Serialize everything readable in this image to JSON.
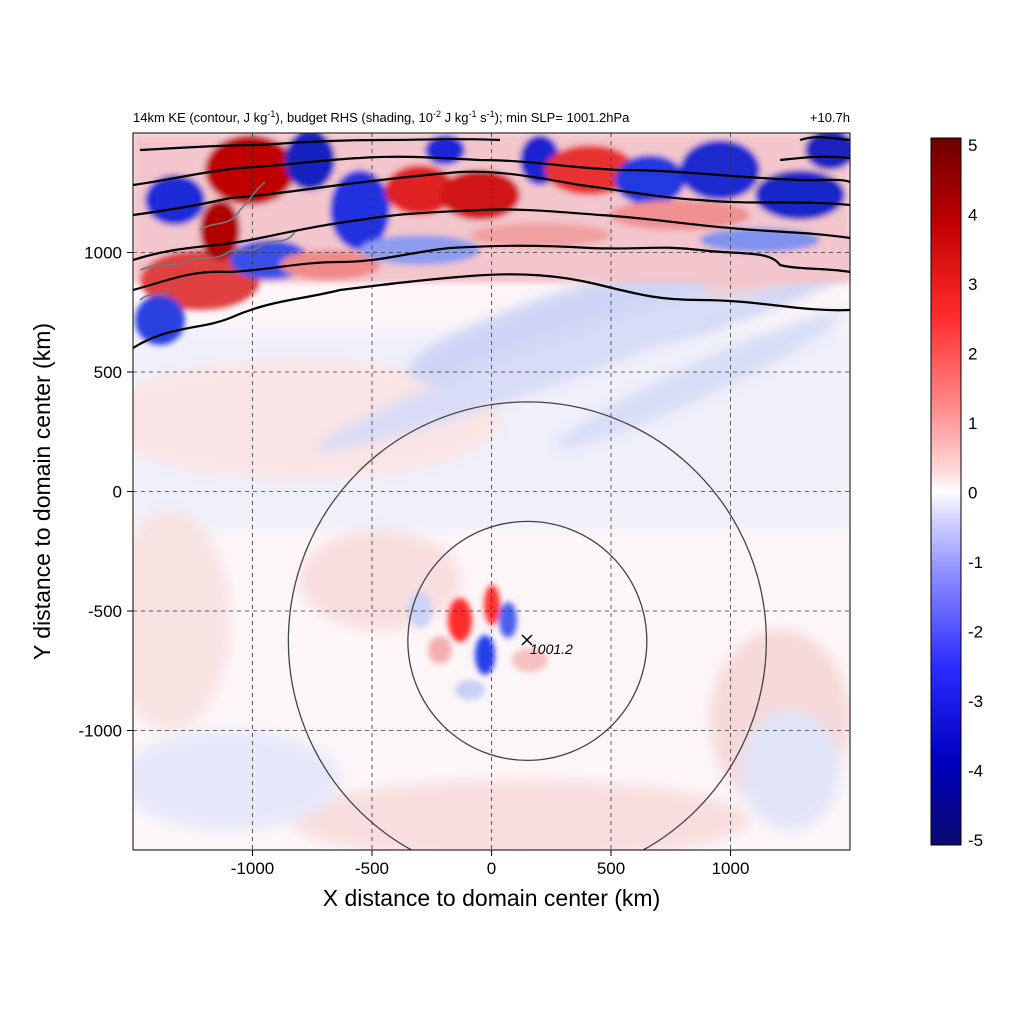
{
  "chart_data": {
    "type": "heatmap",
    "title_left": "14km KE (contour, J kg-1), budget RHS (shading, 10-2 J kg-1 s-1); min SLP= 1001.2hPa",
    "title_left_parts": {
      "a": "14km KE (contour, J kg",
      "a_sup": "-1",
      "b": "), budget RHS (shading, 10",
      "b_sup": "-2",
      "c": " J kg",
      "c_sup": "-1",
      "d": " s",
      "d_sup": "-1",
      "e": "); min SLP= 1001.2hPa"
    },
    "title_right": "+10.7h",
    "xlabel": "X distance to domain center (km)",
    "ylabel": "Y distance to domain center (km)",
    "xlim": [
      -1500,
      1500
    ],
    "ylim": [
      -1500,
      1500
    ],
    "xticks": [
      -1000,
      -500,
      0,
      500,
      1000
    ],
    "xtick_labels": [
      "-1000",
      "-500",
      "0",
      "500",
      "1000"
    ],
    "yticks": [
      1000,
      500,
      0,
      -500,
      -1000
    ],
    "ytick_labels": [
      "1000",
      "500",
      "0",
      "-500",
      "-1000"
    ],
    "grid": true,
    "colorbar": {
      "min": -5,
      "max": 5,
      "ticks": [
        5,
        4,
        3,
        2,
        1,
        0,
        -1,
        -2,
        -3,
        -4,
        -5
      ],
      "tick_labels": [
        "5",
        "4",
        "3",
        "2",
        "1",
        "0",
        "-1",
        "-2",
        "-3",
        "-4",
        "-5"
      ],
      "colors": [
        "#0a0a6e",
        "#0000ff",
        "#8080ff",
        "#ffffff",
        "#ff8080",
        "#ff0000",
        "#6e0000"
      ]
    },
    "storm_center": {
      "x": 150,
      "y": -620,
      "label": "1001.2",
      "marker": "x"
    },
    "range_circles_km": [
      500,
      1000
    ],
    "ke_contours_note": "black contour lines in northern part of domain"
  }
}
